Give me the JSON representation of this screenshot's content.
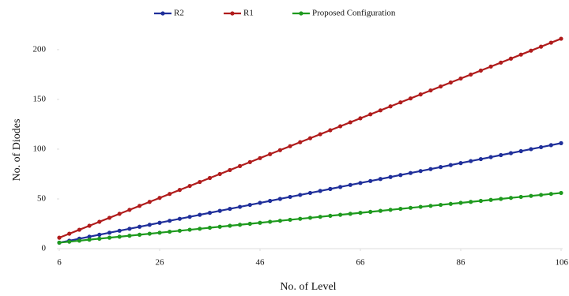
{
  "chart_data": {
    "type": "line",
    "x_label": "No. of Level",
    "y_label": "No. of Diodes",
    "x": [
      6,
      8,
      10,
      12,
      14,
      16,
      18,
      20,
      22,
      24,
      26,
      28,
      30,
      32,
      34,
      36,
      38,
      40,
      42,
      44,
      46,
      48,
      50,
      52,
      54,
      56,
      58,
      60,
      62,
      64,
      66,
      68,
      70,
      72,
      74,
      76,
      78,
      80,
      82,
      84,
      86,
      88,
      90,
      92,
      94,
      96,
      98,
      100,
      102,
      104,
      106
    ],
    "series": [
      {
        "name": "R2",
        "color": "#1f2f9a",
        "values": [
          6,
          8,
          10,
          12,
          14,
          16,
          18,
          20,
          22,
          24,
          26,
          28,
          30,
          32,
          34,
          36,
          38,
          40,
          42,
          44,
          46,
          48,
          50,
          52,
          54,
          56,
          58,
          60,
          62,
          64,
          66,
          68,
          70,
          72,
          74,
          76,
          78,
          80,
          82,
          84,
          86,
          88,
          90,
          92,
          94,
          96,
          98,
          100,
          102,
          104,
          106
        ]
      },
      {
        "name": "R1",
        "color": "#b01c1c",
        "values": [
          11,
          15,
          19,
          23,
          27,
          31,
          35,
          39,
          43,
          47,
          51,
          55,
          59,
          63,
          67,
          71,
          75,
          79,
          83,
          87,
          91,
          95,
          99,
          103,
          107,
          111,
          115,
          119,
          123,
          127,
          131,
          135,
          139,
          143,
          147,
          151,
          155,
          159,
          163,
          167,
          171,
          175,
          179,
          183,
          187,
          191,
          195,
          199,
          203,
          207,
          211
        ]
      },
      {
        "name": "Proposed Configuration",
        "color": "#1e9a1e",
        "values": [
          6,
          7,
          8,
          9,
          10,
          11,
          12,
          13,
          14,
          15,
          16,
          17,
          18,
          19,
          20,
          21,
          22,
          23,
          24,
          25,
          26,
          27,
          28,
          29,
          30,
          31,
          32,
          33,
          34,
          35,
          36,
          37,
          38,
          39,
          40,
          41,
          42,
          43,
          44,
          45,
          46,
          47,
          48,
          49,
          50,
          51,
          52,
          53,
          54,
          55,
          56
        ]
      }
    ],
    "xlim": [
      6,
      106
    ],
    "xticks": [
      6,
      26,
      46,
      66,
      86,
      106
    ],
    "ylim": [
      0,
      215
    ],
    "yticks": [
      0,
      50,
      100,
      150,
      200
    ],
    "grid": false,
    "legend": "top"
  }
}
